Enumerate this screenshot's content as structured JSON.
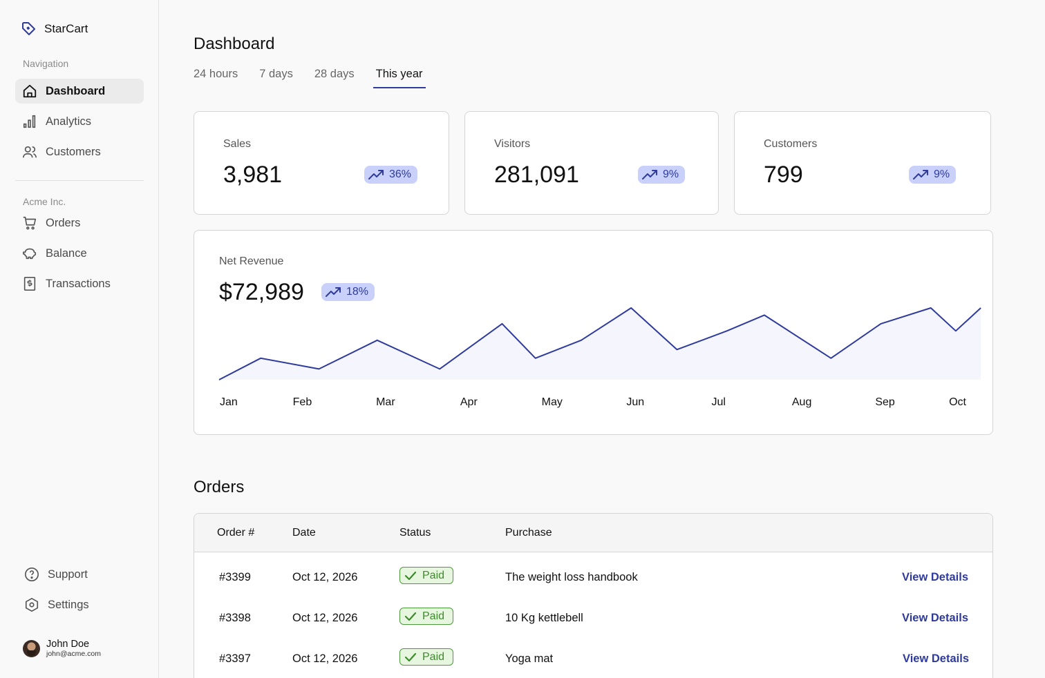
{
  "app": {
    "name": "StarCart"
  },
  "sidebar": {
    "nav_label": "Navigation",
    "nav_items": [
      {
        "label": "Dashboard",
        "icon": "home-icon",
        "active": true
      },
      {
        "label": "Analytics",
        "icon": "bar-chart-icon"
      },
      {
        "label": "Customers",
        "icon": "users-icon"
      }
    ],
    "org_label": "Acme Inc.",
    "org_items": [
      {
        "label": "Orders",
        "icon": "cart-icon"
      },
      {
        "label": "Balance",
        "icon": "piggy-bank-icon"
      },
      {
        "label": "Transactions",
        "icon": "receipt-icon"
      }
    ],
    "bottom_items": [
      {
        "label": "Support",
        "icon": "help-circle-icon"
      },
      {
        "label": "Settings",
        "icon": "settings-icon"
      }
    ],
    "user": {
      "name": "John Doe",
      "email": "john@acme.com"
    }
  },
  "header": {
    "title": "Dashboard",
    "tabs": [
      "24 hours",
      "7 days",
      "28 days",
      "This year"
    ],
    "active_tab": "This year"
  },
  "stats": [
    {
      "label": "Sales",
      "value": "3,981",
      "change": "36%",
      "icon": "trending-up-icon"
    },
    {
      "label": "Visitors",
      "value": "281,091",
      "change": "9%",
      "icon": "trending-up-icon"
    },
    {
      "label": "Customers",
      "value": "799",
      "change": "9%",
      "icon": "trending-up-icon"
    }
  ],
  "revenue": {
    "label": "Net Revenue",
    "value": "$72,989",
    "change": "18%"
  },
  "chart_data": {
    "type": "area",
    "categories": [
      "Jan",
      "Feb",
      "Mar",
      "Apr",
      "May",
      "Jun",
      "Jul",
      "Aug",
      "Sep",
      "Oct"
    ],
    "x": [
      0,
      0.5,
      1.2,
      1.9,
      2.65,
      3.4,
      3.8,
      4.35,
      4.95,
      5.5,
      6.1,
      6.55,
      7.35,
      7.95,
      8.55,
      8.85,
      9.15
    ],
    "values": [
      0,
      30,
      15,
      55,
      15,
      78,
      30,
      55,
      100,
      42,
      68,
      90,
      30,
      78,
      100,
      68,
      100
    ],
    "ylim": [
      0,
      100
    ],
    "color": "#2e3a9c",
    "fill": "#f5f6fd"
  },
  "orders": {
    "title": "Orders",
    "columns": [
      "Order #",
      "Date",
      "Status",
      "Purchase"
    ],
    "rows": [
      {
        "id": "#3399",
        "date": "Oct 12, 2026",
        "status": "Paid",
        "purchase": "The weight loss handbook",
        "action": "View Details"
      },
      {
        "id": "#3398",
        "date": "Oct 12, 2026",
        "status": "Paid",
        "purchase": "10 Kg kettlebell",
        "action": "View Details"
      },
      {
        "id": "#3397",
        "date": "Oct 12, 2026",
        "status": "Paid",
        "purchase": "Yoga mat",
        "action": "View Details"
      }
    ]
  }
}
